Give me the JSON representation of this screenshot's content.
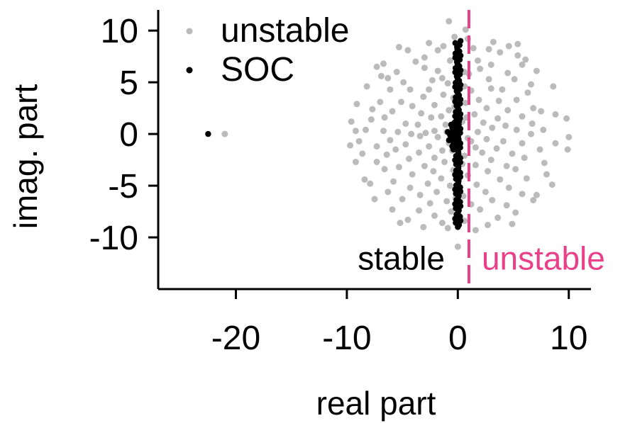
{
  "chart_data": {
    "type": "scatter",
    "xlabel": "real part",
    "ylabel": "imag. part",
    "xlim": [
      -27,
      12
    ],
    "ylim": [
      -15,
      12
    ],
    "xticks": [
      -20,
      -10,
      0,
      10
    ],
    "yticks": [
      10,
      5,
      0,
      -5,
      -10
    ],
    "xtick_labels": [
      "-20",
      "-10",
      "0",
      "10"
    ],
    "ytick_labels": [
      "10",
      "5",
      "0",
      "-5",
      "-10"
    ],
    "threshold_x": 1,
    "region_labels": {
      "left": "stable",
      "right": "unstable"
    },
    "legend": {
      "placement": "top-left"
    },
    "colors": {
      "unstable": "#bbbbbb",
      "soc": "#000000",
      "threshold": "#e8418a",
      "axes": "#000000"
    },
    "series": [
      {
        "name": "unstable",
        "outliers": [
          [
            -21,
            0
          ]
        ],
        "points": [
          [
            -0.8,
            10.9
          ],
          [
            0.7,
            10.1
          ],
          [
            -0.3,
            9.4
          ],
          [
            0.9,
            9.2
          ],
          [
            3.2,
            8.9
          ],
          [
            4.6,
            8.5
          ],
          [
            5.4,
            8.7
          ],
          [
            -1.3,
            8.5
          ],
          [
            -5.3,
            8.4
          ],
          [
            1.4,
            8.3
          ],
          [
            -4.5,
            8.1
          ],
          [
            2.8,
            8.2
          ],
          [
            -1.8,
            8.1
          ],
          [
            -3.0,
            7.4
          ],
          [
            5.4,
            7.6
          ],
          [
            1.8,
            7.1
          ],
          [
            -0.7,
            7.1
          ],
          [
            -3.8,
            7.0
          ],
          [
            6.1,
            7.2
          ],
          [
            -7.3,
            6.5
          ],
          [
            3.0,
            6.7
          ],
          [
            5.8,
            6.7
          ],
          [
            -3.0,
            6.4
          ],
          [
            -5.5,
            6.0
          ],
          [
            2.0,
            6.3
          ],
          [
            -1.8,
            6.1
          ],
          [
            7.1,
            6.1
          ],
          [
            0.6,
            6.0
          ],
          [
            -6.3,
            5.4
          ],
          [
            4.5,
            5.9
          ],
          [
            -1.4,
            5.4
          ],
          [
            -2.3,
            5.2
          ],
          [
            2.8,
            5.3
          ],
          [
            -4.9,
            5.0
          ],
          [
            5.1,
            5.3
          ],
          [
            -0.9,
            4.9
          ],
          [
            0.6,
            4.6
          ],
          [
            3.0,
            4.4
          ],
          [
            -8.2,
            4.6
          ],
          [
            8.6,
            4.6
          ],
          [
            -4.3,
            4.3
          ],
          [
            -2.6,
            4.3
          ],
          [
            4.0,
            4.3
          ],
          [
            1.2,
            4.2
          ],
          [
            -6.1,
            4.3
          ],
          [
            6.3,
            4.0
          ],
          [
            -1.3,
            3.8
          ],
          [
            -3.1,
            3.6
          ],
          [
            -0.4,
            3.5
          ],
          [
            1.9,
            3.3
          ],
          [
            -5.1,
            3.1
          ],
          [
            3.7,
            3.2
          ],
          [
            -7.0,
            3.1
          ],
          [
            5.3,
            3.3
          ],
          [
            0.7,
            3.0
          ],
          [
            -9.1,
            2.9
          ],
          [
            -2.1,
            2.8
          ],
          [
            2.6,
            2.5
          ],
          [
            6.8,
            2.5
          ],
          [
            -4.1,
            2.7
          ],
          [
            -0.8,
            2.3
          ],
          [
            -5.9,
            2.2
          ],
          [
            4.5,
            2.3
          ],
          [
            7.5,
            2.2
          ],
          [
            -3.3,
            2.0
          ],
          [
            -1.5,
            1.7
          ],
          [
            1.5,
            1.9
          ],
          [
            -2.4,
            1.6
          ],
          [
            3.6,
            1.5
          ],
          [
            -6.6,
            1.6
          ],
          [
            5.8,
            1.7
          ],
          [
            -7.8,
            1.4
          ],
          [
            0.4,
            1.2
          ],
          [
            -4.7,
            1.0
          ],
          [
            8.8,
            1.9
          ],
          [
            -9.6,
            1.2
          ],
          [
            2.3,
            1.1
          ],
          [
            -3.6,
            0.9
          ],
          [
            4.3,
            0.8
          ],
          [
            6.7,
            1.0
          ],
          [
            -1.1,
            0.9
          ],
          [
            9.8,
            1.5
          ],
          [
            -8.3,
            0.4
          ],
          [
            -5.4,
            0.2
          ],
          [
            7.7,
            0.4
          ],
          [
            -2.9,
            0.1
          ],
          [
            -6.7,
            0.3
          ],
          [
            -9.2,
            0.3
          ],
          [
            1.8,
            0.2
          ],
          [
            3.1,
            0.6
          ],
          [
            5.3,
            0.4
          ],
          [
            -4.2,
            0.0
          ],
          [
            -2.1,
            0.3
          ],
          [
            6.6,
            0.0
          ],
          [
            -1.8,
            -0.3
          ],
          [
            -3.4,
            -0.2
          ],
          [
            0.9,
            -0.4
          ],
          [
            -6.1,
            -0.6
          ],
          [
            2.6,
            -0.5
          ],
          [
            -8.9,
            -0.7
          ],
          [
            4.1,
            -0.7
          ],
          [
            -4.7,
            -1.0
          ],
          [
            -0.8,
            -0.9
          ],
          [
            5.8,
            -0.9
          ],
          [
            -2.6,
            -1.2
          ],
          [
            8.8,
            -0.9
          ],
          [
            -7.3,
            -1.2
          ],
          [
            1.6,
            -1.3
          ],
          [
            3.5,
            -1.4
          ],
          [
            -5.6,
            -1.5
          ],
          [
            -1.4,
            -1.6
          ],
          [
            7.4,
            -1.5
          ],
          [
            -3.5,
            -1.8
          ],
          [
            2.2,
            -1.8
          ],
          [
            -8.6,
            -1.9
          ],
          [
            4.9,
            -1.9
          ],
          [
            -6.4,
            -2.0
          ],
          [
            9.9,
            -1.5
          ],
          [
            -2.1,
            -2.3
          ],
          [
            0.6,
            -2.1
          ],
          [
            -4.4,
            -2.4
          ],
          [
            6.0,
            -2.3
          ],
          [
            3.0,
            -2.5
          ],
          [
            -7.3,
            -2.7
          ],
          [
            -1.2,
            -2.7
          ],
          [
            -9.2,
            -2.7
          ],
          [
            1.6,
            -3.0
          ],
          [
            -5.3,
            -3.2
          ],
          [
            -3.0,
            -3.1
          ],
          [
            4.4,
            -3.1
          ],
          [
            7.8,
            -2.8
          ],
          [
            -0.4,
            -3.5
          ],
          [
            -6.6,
            -3.4
          ],
          [
            2.7,
            -3.6
          ],
          [
            5.2,
            -3.4
          ],
          [
            -2.2,
            -3.6
          ],
          [
            -4.1,
            -3.9
          ],
          [
            0.9,
            -4.0
          ],
          [
            -1.5,
            -4.3
          ],
          [
            -8.4,
            -4.4
          ],
          [
            3.8,
            -4.4
          ],
          [
            6.2,
            -4.3
          ],
          [
            -5.8,
            -4.6
          ],
          [
            -2.7,
            -4.8
          ],
          [
            1.7,
            -4.9
          ],
          [
            -0.7,
            -5.0
          ],
          [
            4.6,
            -5.2
          ],
          [
            -4.3,
            -5.2
          ],
          [
            8.5,
            -4.9
          ],
          [
            -6.3,
            -5.6
          ],
          [
            2.5,
            -5.6
          ],
          [
            -1.9,
            -5.6
          ],
          [
            5.8,
            -5.8
          ],
          [
            -3.4,
            -5.9
          ],
          [
            0.5,
            -6.0
          ],
          [
            -5.0,
            -6.3
          ],
          [
            3.1,
            -6.4
          ],
          [
            -7.5,
            -6.3
          ],
          [
            -1.0,
            -6.5
          ],
          [
            6.8,
            -6.4
          ],
          [
            -2.5,
            -6.7
          ],
          [
            1.2,
            -6.8
          ],
          [
            4.4,
            -6.9
          ],
          [
            -5.9,
            -7.3
          ],
          [
            -3.5,
            -7.4
          ],
          [
            2.0,
            -7.3
          ],
          [
            -0.6,
            -7.5
          ],
          [
            5.2,
            -7.6
          ],
          [
            -2.1,
            -7.9
          ],
          [
            3.6,
            -8.1
          ],
          [
            -4.5,
            -8.3
          ],
          [
            0.6,
            -8.4
          ],
          [
            -1.4,
            -8.6
          ],
          [
            -5.2,
            -8.6
          ],
          [
            4.9,
            -8.7
          ],
          [
            2.7,
            -8.8
          ],
          [
            -3.1,
            -9.0
          ],
          [
            -0.9,
            -9.1
          ],
          [
            1.6,
            -9.3
          ],
          [
            0.0,
            -10.9
          ],
          [
            -2.6,
            8.8
          ],
          [
            3.8,
            7.9
          ],
          [
            -6.7,
            6.8
          ],
          [
            6.6,
            4.8
          ],
          [
            -7.7,
            2.4
          ],
          [
            8.0,
            -3.9
          ],
          [
            -7.9,
            -4.8
          ],
          [
            7.1,
            -5.9
          ],
          [
            -6.9,
            5.6
          ],
          [
            -0.2,
            -6.2
          ],
          [
            1.0,
            5.8
          ],
          [
            -1.0,
            0.2
          ],
          [
            1.2,
            -0.7
          ],
          [
            -0.5,
            -1.6
          ],
          [
            0.8,
            1.6
          ],
          [
            -0.3,
            2.6
          ],
          [
            0.4,
            -2.9
          ],
          [
            -9.7,
            -1.1
          ],
          [
            10.0,
            -0.3
          ]
        ]
      },
      {
        "name": "SOC",
        "outliers": [
          [
            -22.5,
            0
          ]
        ],
        "x_spread": 0.45,
        "ymin": -9,
        "ymax": 9,
        "n": 90,
        "cluster_center": [
          -0.3,
          0
        ],
        "cluster_points": [
          [
            -0.6,
            0.1
          ],
          [
            -0.3,
            0.2
          ],
          [
            -0.1,
            -0.1
          ],
          [
            -0.5,
            -0.3
          ],
          [
            -0.4,
            0.4
          ],
          [
            -0.2,
            -0.4
          ],
          [
            -0.7,
            -0.1
          ],
          [
            0.0,
            0.3
          ],
          [
            -0.3,
            -0.6
          ],
          [
            -0.5,
            0.6
          ],
          [
            -0.9,
            0.2
          ],
          [
            -0.4,
            -0.8
          ],
          [
            -0.6,
            0.9
          ],
          [
            0.1,
            -0.7
          ],
          [
            -0.2,
            0.8
          ],
          [
            -0.8,
            -0.6
          ],
          [
            -0.3,
            1.1
          ],
          [
            -0.5,
            -1.2
          ],
          [
            0.1,
            1.2
          ],
          [
            -0.4,
            -1.5
          ]
        ]
      }
    ]
  }
}
